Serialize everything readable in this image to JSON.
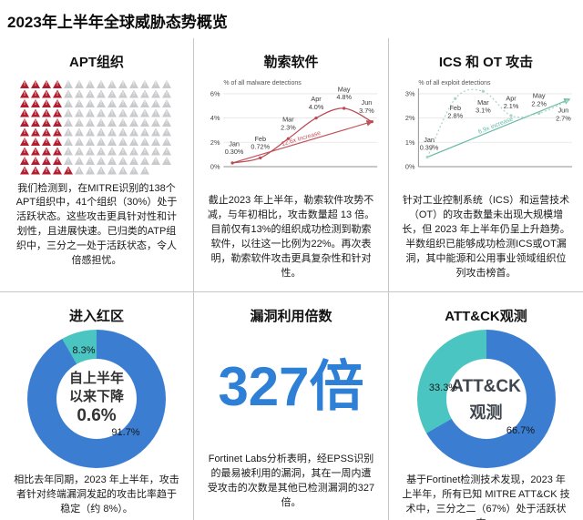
{
  "page_title": "2023年上半年全球威胁态势概览",
  "colors": {
    "donut_blue": "#3a7dd1",
    "donut_teal": "#4ac5c1",
    "big_number_blue": "#2e7fd6",
    "apt_active_red": "#b11f2f",
    "apt_inactive_gray": "#c9cacc",
    "ransomware_red": "#bd4a53",
    "ics_teal": "#66b9a6",
    "divider_gray": "#c6c6c6"
  },
  "panels": {
    "apt": {
      "title": "APT组织",
      "waffle": {
        "total": 138,
        "active": 41,
        "row_lengths": [
          14,
          14,
          14,
          14,
          14,
          14,
          14,
          14,
          14,
          12
        ],
        "active_per_row": [
          4,
          4,
          4,
          4,
          4,
          4,
          4,
          4,
          4,
          5
        ],
        "active_color": "#b11f2f",
        "inactive_color": "#c9cacc"
      },
      "description": "我们检测到，在MITRE识别的138个APT组织中，41个组织（30%）处于活跃状态。这些攻击更具针对性和计划性，且进展快速。已归类的ATP组织中，三分之一处于活跃状态，令人倍感担忧。"
    },
    "ransomware": {
      "title": "勒索软件",
      "description": "截止2023 年上半年，勒索软件攻势不减，与年初相比，攻击数量超 13 倍。目前仅有13%的组织成功检测到勒索软件，以往这一比例为22%。再次表明，勒索软件攻击更具复杂性和针对性。"
    },
    "ics": {
      "title": "ICS 和 OT 攻击",
      "description": "针对工业控制系统（ICS）和运营技术（OT）的攻击数量未出现大规模增长，但 2023 年上半年仍呈上升趋势。半数组织已能够成功检测ICS或OT漏洞，其中能源和公用事业领域组织位列攻击榜首。"
    },
    "redzone": {
      "title": "进入红区",
      "center_lines": [
        "自上半年",
        "以来下降",
        "0.6%"
      ],
      "description": "相比去年同期，2023 年上半年，攻击者针对终端漏洞发起的攻击比率趋于稳定（约 8%）。"
    },
    "exploit": {
      "title": "漏洞利用倍数",
      "big_number": "327倍",
      "description": "Fortinet Labs分析表明，经EPSS识别的最易被利用的漏洞，其在一周内遭受攻击的次数是其他已检测漏洞的327倍。"
    },
    "attck": {
      "title": "ATT&CK观测",
      "center_lines": [
        "ATT&CK",
        "观测"
      ],
      "description": "基于Fortinet检测技术发现，2023 年上半年，所有已知 MITRE ATT&CK 技术中，三分之二（67%）处于活跃状态。"
    }
  },
  "chart_data": [
    {
      "id": "ransomware",
      "type": "line",
      "title": "勒索软件",
      "axis_title": "% of all malware detections",
      "x": [
        "Jan",
        "Feb",
        "Mar",
        "Apr",
        "May",
        "Jun"
      ],
      "values": [
        0.3,
        0.72,
        2.3,
        4.0,
        4.8,
        3.7
      ],
      "point_labels": [
        "0.30%",
        "0.72%",
        "2.3%",
        "4.0%",
        "4.8%",
        "3.7%"
      ],
      "annotation": "12.6x Increase",
      "ylim": [
        0,
        6
      ],
      "yticks": [
        "0%",
        "2%",
        "4%",
        "6%"
      ],
      "grid": true,
      "curve_color": "#bd4a53",
      "arrow_color": "#c0525c"
    },
    {
      "id": "ics_ot",
      "type": "line",
      "title": "ICS 和 OT 攻击",
      "axis_title": "% of all exploit detections",
      "x": [
        "Jan",
        "Feb",
        "Mar",
        "Apr",
        "May",
        "Jun"
      ],
      "values": [
        0.39,
        2.8,
        3.1,
        2.1,
        2.2,
        2.7
      ],
      "point_labels": [
        "0.39%",
        "2.8%",
        "3.1%",
        "2.1%",
        "2.2%",
        "2.7%"
      ],
      "annotation": "6.9x increase",
      "ylim": [
        0,
        3
      ],
      "yticks": [
        "0%",
        "1%",
        "2%",
        "3%"
      ],
      "grid": true,
      "curve_color": "#a9d6c7",
      "arrow_color": "#66b9a6"
    },
    {
      "id": "red_zone",
      "type": "pie",
      "title": "进入红区",
      "center_text": "自上半年以来下降 0.6%",
      "slices": [
        {
          "label": "91.7%",
          "value": 91.7,
          "color": "#3a7dd1"
        },
        {
          "label": "8.3%",
          "value": 8.3,
          "color": "#4ac5c1"
        }
      ]
    },
    {
      "id": "attck",
      "type": "pie",
      "title": "ATT&CK观测",
      "center_text": "ATT&CK 观测",
      "slices": [
        {
          "label": "66.7%",
          "value": 66.7,
          "color": "#3a7dd1"
        },
        {
          "label": "33.3%",
          "value": 33.3,
          "color": "#4ac5c1"
        }
      ]
    }
  ]
}
